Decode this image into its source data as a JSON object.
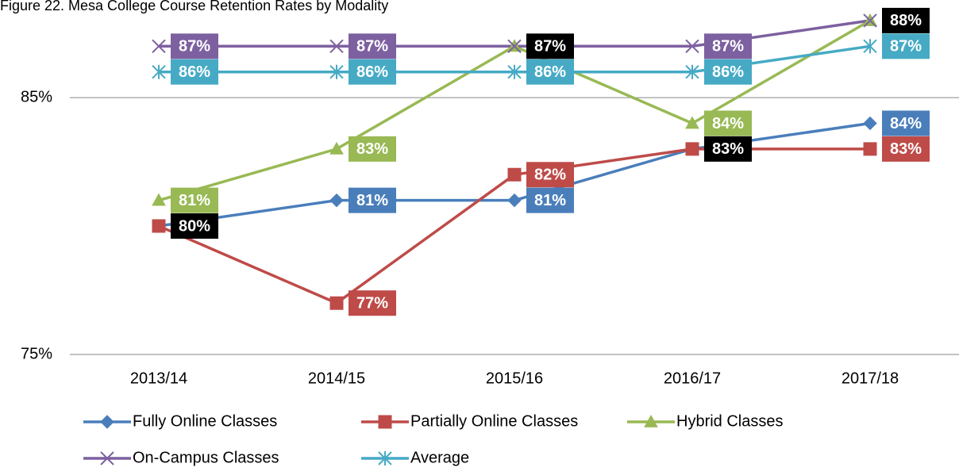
{
  "chart_data": {
    "type": "line",
    "title": "Figure 22. Mesa College Course Retention Rates by Modality",
    "categories": [
      "2013/14",
      "2014/15",
      "2015/16",
      "2016/17",
      "2017/18"
    ],
    "ylim": [
      75,
      88.8
    ],
    "yticks": [
      {
        "value": 75,
        "label": "75%"
      },
      {
        "value": 85,
        "label": "85%"
      }
    ],
    "grid": true,
    "legend": "bottom",
    "series": [
      {
        "name": "Fully Online Classes",
        "color": "#4a7ebb",
        "marker": "diamond",
        "values": [
          80,
          81,
          81,
          83,
          84
        ],
        "value_labels": [
          "80%",
          "81%",
          "81%",
          "83%",
          "84%"
        ],
        "label_colors": [
          "#000000",
          "#4a7ebb",
          "#4a7ebb",
          "#000000",
          "#4a7ebb"
        ]
      },
      {
        "name": "Partially Online Classes",
        "color": "#be4b48",
        "marker": "square",
        "values": [
          80,
          77,
          82,
          83,
          83
        ],
        "value_labels": [
          null,
          "77%",
          "82%",
          null,
          "83%"
        ],
        "label_colors": [
          "#be4b48",
          "#be4b48",
          "#be4b48",
          "#be4b48",
          "#be4b48"
        ]
      },
      {
        "name": "Hybrid Classes",
        "color": "#98b954",
        "marker": "triangle",
        "values": [
          81,
          83,
          87,
          84,
          88
        ],
        "value_labels": [
          "81%",
          "83%",
          "87%",
          "84%",
          null
        ],
        "label_colors": [
          "#98b954",
          "#98b954",
          "#000000",
          "#98b954",
          "#98b954"
        ]
      },
      {
        "name": "On-Campus Classes",
        "color": "#7d60a0",
        "marker": "x",
        "values": [
          87,
          87,
          87,
          87,
          88
        ],
        "value_labels": [
          "87%",
          "87%",
          null,
          "87%",
          "88%"
        ],
        "label_colors": [
          "#7d60a0",
          "#7d60a0",
          "#7d60a0",
          "#7d60a0",
          "#000000"
        ]
      },
      {
        "name": "Average",
        "color": "#46aac5",
        "marker": "star",
        "values": [
          86,
          86,
          86,
          86,
          87
        ],
        "value_labels": [
          "86%",
          "86%",
          "86%",
          "86%",
          "87%"
        ],
        "label_colors": [
          "#46aac5",
          "#46aac5",
          "#46aac5",
          "#46aac5",
          "#46aac5"
        ]
      }
    ]
  }
}
